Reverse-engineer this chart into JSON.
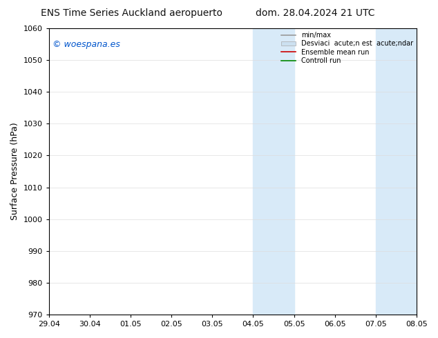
{
  "title_left": "ENS Time Series Auckland aeropuerto",
  "title_right": "dom. 28.04.2024 21 UTC",
  "ylabel": "Surface Pressure (hPa)",
  "ylim": [
    970,
    1060
  ],
  "yticks": [
    970,
    980,
    990,
    1000,
    1010,
    1020,
    1030,
    1040,
    1050,
    1060
  ],
  "x_labels": [
    "29.04",
    "30.04",
    "01.05",
    "02.05",
    "03.05",
    "04.05",
    "05.05",
    "06.05",
    "07.05",
    "08.05"
  ],
  "x_positions": [
    0,
    1,
    2,
    3,
    4,
    5,
    6,
    7,
    8,
    9
  ],
  "xlim": [
    0,
    9
  ],
  "watermark_text": "© woespana.es",
  "watermark_color": "#0055cc",
  "legend_label_1": "min/max",
  "legend_label_2": "Desviaci  acute;n est  acute;ndar",
  "legend_label_3": "Ensemble mean run",
  "legend_label_4": "Controll run",
  "legend_color_1": "#999999",
  "legend_color_2": "#cce0f0",
  "legend_color_3": "#cc0000",
  "legend_color_4": "#008800",
  "bg_color": "#ffffff",
  "spine_color": "#000000",
  "grid_color": "#dddddd",
  "shaded_color": "#d8eaf8",
  "shaded_alpha": 1.0,
  "shade1_xmin": 5.0,
  "shade1_xmax": 6.0,
  "shade2_xmin": 8.0,
  "shade2_xmax": 9.0,
  "title_fontsize": 10,
  "ylabel_fontsize": 9,
  "tick_fontsize": 8
}
